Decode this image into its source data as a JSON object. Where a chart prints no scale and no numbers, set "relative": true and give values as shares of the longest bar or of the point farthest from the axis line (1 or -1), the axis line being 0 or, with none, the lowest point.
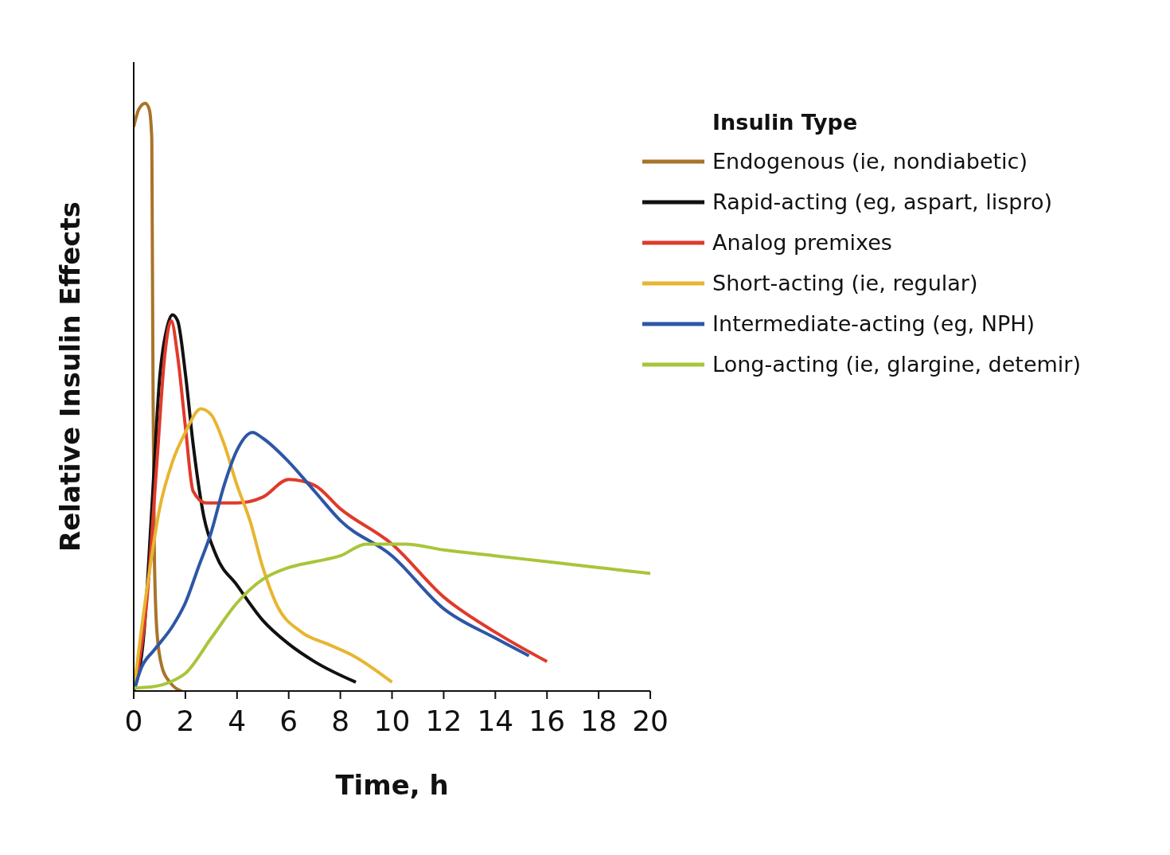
{
  "chart_data": {
    "type": "line",
    "relative": true,
    "xlabel": "Time, h",
    "ylabel": "Relative Insulin Effects",
    "legend_title": "Insulin Type",
    "legend": "top right",
    "grid": false,
    "marker": "none",
    "line_style": "solid",
    "xlim": [
      0,
      20
    ],
    "xticks": [
      0,
      2,
      4,
      6,
      8,
      10,
      12,
      14,
      16,
      18,
      20
    ],
    "series": [
      {
        "name": "Endogenous (ie, nondiabetic)",
        "color": "#a8742a",
        "x": [
          0,
          0.2,
          0.45,
          0.6,
          0.7,
          0.72,
          0.75,
          0.8,
          0.9,
          1.1,
          1.4,
          1.85
        ],
        "values": [
          0.96,
          0.99,
          1,
          0.99,
          0.94,
          0.77,
          0.5,
          0.23,
          0.1,
          0.04,
          0.015,
          0
        ]
      },
      {
        "name": "Rapid-acting (eg, aspart, lispro)",
        "color": "#111111",
        "x": [
          0,
          0.4,
          0.7,
          1,
          1.3,
          1.5,
          1.7,
          2,
          2.3,
          2.7,
          3.2,
          4,
          5,
          6,
          7,
          8.6
        ],
        "values": [
          0,
          0.1,
          0.31,
          0.53,
          0.62,
          0.64,
          0.63,
          0.54,
          0.42,
          0.3,
          0.23,
          0.18,
          0.12,
          0.08,
          0.05,
          0.015
        ]
      },
      {
        "name": "Analog premixes",
        "color": "#e03a2a",
        "x": [
          0,
          0.5,
          0.9,
          1.2,
          1.45,
          1.7,
          2,
          2.3,
          2.8,
          4,
          5,
          6,
          7,
          8,
          10,
          12,
          14,
          16
        ],
        "values": [
          0,
          0.15,
          0.39,
          0.57,
          0.63,
          0.57,
          0.45,
          0.34,
          0.32,
          0.32,
          0.33,
          0.36,
          0.35,
          0.31,
          0.25,
          0.16,
          0.1,
          0.05
        ]
      },
      {
        "name": "Short-acting (ie, regular)",
        "color": "#e8b530",
        "x": [
          0,
          0.5,
          1,
          1.5,
          2,
          2.6,
          3,
          3.5,
          4,
          4.5,
          5,
          5.5,
          6.5,
          7.5,
          8.5,
          10
        ],
        "values": [
          0,
          0.17,
          0.31,
          0.39,
          0.44,
          0.48,
          0.47,
          0.42,
          0.35,
          0.29,
          0.21,
          0.15,
          0.1,
          0.08,
          0.06,
          0.015
        ]
      },
      {
        "name": "Intermediate-acting (eg, NPH)",
        "color": "#2e56a6",
        "x": [
          0,
          0.3,
          0.8,
          1.5,
          2,
          2.5,
          3,
          3.5,
          4,
          4.6,
          5,
          6,
          7,
          8,
          10,
          12,
          14,
          15.3
        ],
        "values": [
          0,
          0.04,
          0.07,
          0.11,
          0.15,
          0.21,
          0.27,
          0.35,
          0.41,
          0.44,
          0.43,
          0.39,
          0.34,
          0.29,
          0.23,
          0.14,
          0.09,
          0.06
        ]
      },
      {
        "name": "Long-acting (ie, glargine, detemir)",
        "color": "#a9c53a",
        "x": [
          0,
          0.7,
          1.5,
          2,
          3,
          4,
          5,
          6,
          7,
          8,
          9,
          10.5,
          12,
          14,
          16,
          18,
          20
        ],
        "values": [
          0.005,
          0.007,
          0.017,
          0.03,
          0.09,
          0.15,
          0.19,
          0.21,
          0.22,
          0.23,
          0.25,
          0.25,
          0.24,
          0.23,
          0.22,
          0.21,
          0.2
        ]
      }
    ]
  }
}
